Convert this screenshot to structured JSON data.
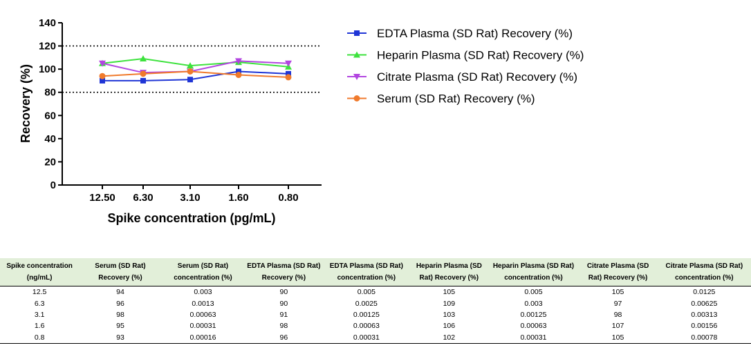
{
  "chart_data": {
    "type": "line",
    "xlabel": "Spike concentration (pg/mL)",
    "ylabel": "Recovery (%)",
    "categories": [
      "12.50",
      "6.30",
      "3.10",
      "1.60",
      "0.80"
    ],
    "ylim": [
      0,
      140
    ],
    "yticks": [
      "0",
      "20",
      "40",
      "60",
      "80",
      "100",
      "120",
      "140"
    ],
    "reference_lines": [
      80,
      120
    ],
    "legend_position": "right",
    "series": [
      {
        "name": "EDTA Plasma (SD Rat) Recovery (%)",
        "color": "#1f35d6",
        "marker": "square",
        "values": [
          90,
          90,
          91,
          98,
          96
        ]
      },
      {
        "name": "Heparin Plasma (SD Rat) Recovery (%)",
        "color": "#3de23d",
        "marker": "triangle-up",
        "values": [
          105,
          109,
          103,
          106,
          102
        ]
      },
      {
        "name": "Citrate Plasma (SD Rat) Recovery (%)",
        "color": "#b245e0",
        "marker": "triangle-down",
        "values": [
          105,
          97,
          98,
          107,
          105
        ]
      },
      {
        "name": "Serum (SD Rat) Recovery (%)",
        "color": "#f07a2c",
        "marker": "circle",
        "values": [
          94,
          96,
          98,
          95,
          93
        ]
      }
    ]
  },
  "table": {
    "headers": [
      "Spike concentration (ng/mL)",
      "Serum (SD Rat) Recovery (%)",
      "Serum (SD Rat) concentration (%)",
      "EDTA Plasma (SD Rat) Recovery (%)",
      "EDTA Plasma (SD Rat) concentration (%)",
      "Heparin Plasma (SD Rat) Recovery (%)",
      "Heparin Plasma (SD Rat) concentration (%)",
      "Citrate Plasma (SD Rat) Recovery (%)",
      "Citrate Plasma (SD Rat) concentration (%)"
    ],
    "rows": [
      [
        "12.5",
        "94",
        "0.003",
        "90",
        "0.005",
        "105",
        "0.005",
        "105",
        "0.0125"
      ],
      [
        "6.3",
        "96",
        "0.0013",
        "90",
        "0.0025",
        "109",
        "0.003",
        "97",
        "0.00625"
      ],
      [
        "3.1",
        "98",
        "0.00063",
        "91",
        "0.00125",
        "103",
        "0.00125",
        "98",
        "0.00313"
      ],
      [
        "1.6",
        "95",
        "0.00031",
        "98",
        "0.00063",
        "106",
        "0.00063",
        "107",
        "0.00156"
      ],
      [
        "0.8",
        "93",
        "0.00016",
        "96",
        "0.00031",
        "102",
        "0.00031",
        "105",
        "0.00078"
      ]
    ]
  }
}
